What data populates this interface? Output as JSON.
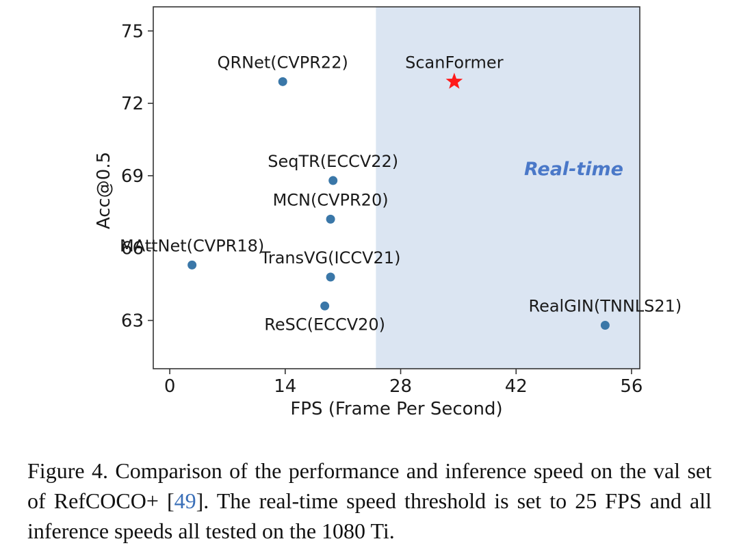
{
  "chart_data": {
    "type": "scatter",
    "xlabel": "FPS (Frame Per Second)",
    "ylabel": "Acc@0.5",
    "xlim": [
      -2,
      57
    ],
    "ylim": [
      61,
      76
    ],
    "xticks": [
      0,
      14,
      28,
      42,
      56
    ],
    "yticks": [
      63,
      66,
      69,
      72,
      75
    ],
    "grid": false,
    "region": {
      "x_from": 25,
      "label": "Real-time",
      "color": "#dbe5f2",
      "label_color": "#4a78c8"
    },
    "points": [
      {
        "name": "QRNet(CVPR22)",
        "x": 13.7,
        "y": 72.9,
        "marker": "circle",
        "color": "#3a77a8",
        "label_pos": "above"
      },
      {
        "name": "ScanFormer",
        "x": 34.5,
        "y": 72.9,
        "marker": "star",
        "color": "#ff1a1a",
        "label_pos": "above"
      },
      {
        "name": "SeqTR(ECCV22)",
        "x": 19.8,
        "y": 68.8,
        "marker": "circle",
        "color": "#3a77a8",
        "label_pos": "above"
      },
      {
        "name": "MCN(CVPR20)",
        "x": 19.5,
        "y": 67.2,
        "marker": "circle",
        "color": "#3a77a8",
        "label_pos": "above"
      },
      {
        "name": "MAttNet(CVPR18)",
        "x": 2.7,
        "y": 65.3,
        "marker": "circle",
        "color": "#3a77a8",
        "label_pos": "above"
      },
      {
        "name": "TransVG(ICCV21)",
        "x": 19.5,
        "y": 64.8,
        "marker": "circle",
        "color": "#3a77a8",
        "label_pos": "above"
      },
      {
        "name": "ReSC(ECCV20)",
        "x": 18.8,
        "y": 63.6,
        "marker": "circle",
        "color": "#3a77a8",
        "label_pos": "below"
      },
      {
        "name": "RealGIN(TNNLS21)",
        "x": 52.8,
        "y": 62.8,
        "marker": "circle",
        "color": "#3a77a8",
        "label_pos": "above"
      }
    ]
  },
  "caption": {
    "prefix": "Figure 4. Comparison of the performance and inference speed on the val set of RefCOCO+ [",
    "ref": "49",
    "suffix": "]. The real-time speed threshold is set to 25 FPS and all inference speeds all tested on the 1080 Ti."
  }
}
